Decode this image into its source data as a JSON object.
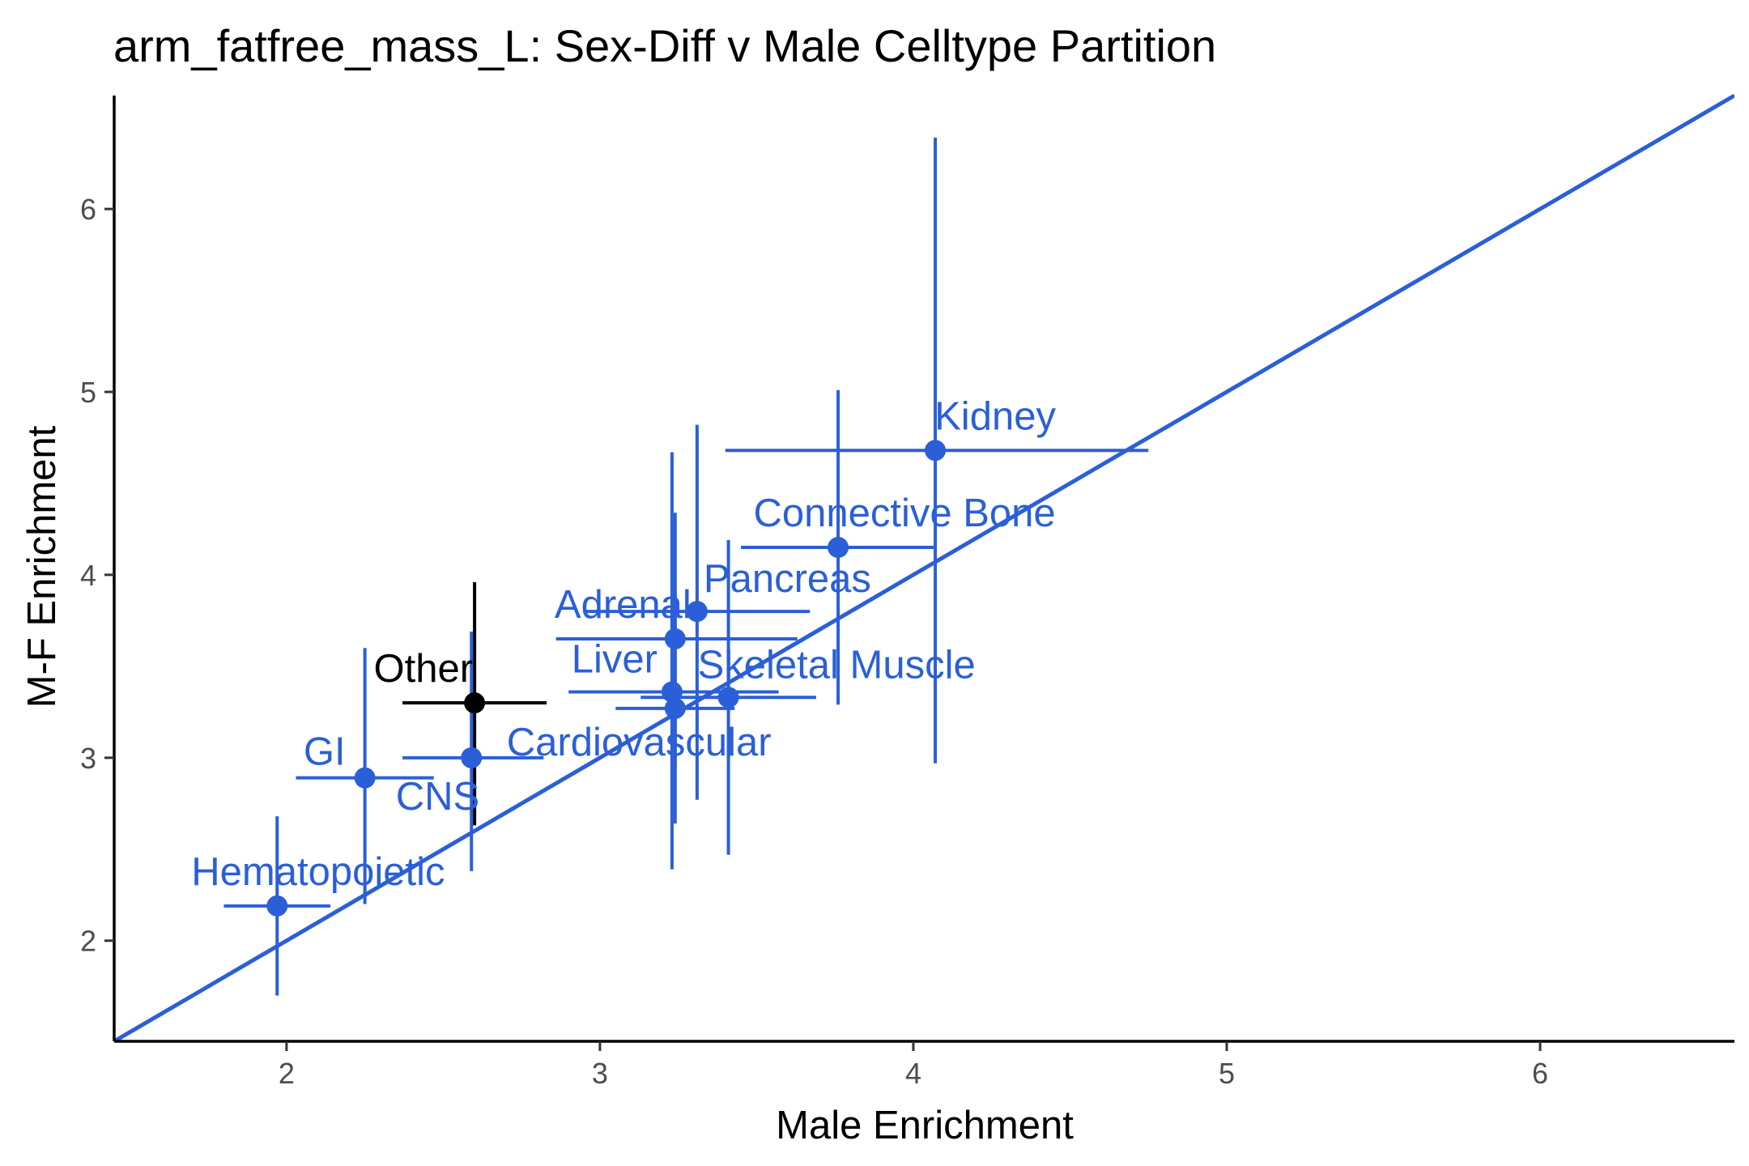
{
  "chart_data": {
    "type": "scatter",
    "title": "arm_fatfree_mass_L: Sex-Diff v Male Celltype Partition",
    "xlabel": "Male Enrichment",
    "ylabel": "M-F Enrichment",
    "xlim": [
      1.45,
      6.62
    ],
    "ylim": [
      1.45,
      6.62
    ],
    "x_ticks": [
      "2",
      "3",
      "4",
      "5",
      "6"
    ],
    "y_ticks": [
      "2",
      "3",
      "4",
      "5",
      "6"
    ],
    "grid": false,
    "legend": "none",
    "reference_line": {
      "type": "identity",
      "slope": 1,
      "intercept": 0,
      "color": "#2b5fd8"
    },
    "point_color": "#2b5fd8",
    "highlight_color": "#000000",
    "points": [
      {
        "label": "Kidney",
        "x": 4.07,
        "y": 4.68,
        "x_low": 3.4,
        "x_high": 4.75,
        "y_low": 2.97,
        "y_high": 6.39,
        "color": "#2b5fd8",
        "label_pos": "above"
      },
      {
        "label": "Connective Bone",
        "x": 3.76,
        "y": 4.15,
        "x_low": 3.45,
        "x_high": 4.07,
        "y_low": 3.29,
        "y_high": 5.01,
        "color": "#2b5fd8",
        "label_pos": "above"
      },
      {
        "label": "Adrenal",
        "x": 3.24,
        "y": 3.65,
        "x_low": 2.86,
        "x_high": 3.63,
        "y_low": 2.95,
        "y_high": 4.34,
        "color": "#2b5fd8",
        "label_pos": "above-left"
      },
      {
        "label": "Pancreas",
        "x": 3.31,
        "y": 3.8,
        "x_low": 2.95,
        "x_high": 3.67,
        "y_low": 2.77,
        "y_high": 4.82,
        "color": "#2b5fd8",
        "label_pos": "right"
      },
      {
        "label": "Liver",
        "x": 3.23,
        "y": 3.36,
        "x_low": 2.9,
        "x_high": 3.57,
        "y_low": 2.39,
        "y_high": 4.67,
        "color": "#2b5fd8",
        "label_pos": "above-left"
      },
      {
        "label": "Skeletal Muscle",
        "x": 3.41,
        "y": 3.33,
        "x_low": 3.13,
        "x_high": 3.69,
        "y_low": 2.47,
        "y_high": 4.19,
        "color": "#2b5fd8",
        "label_pos": "right"
      },
      {
        "label": "Cardiovascular",
        "x": 3.24,
        "y": 3.27,
        "x_low": 3.05,
        "x_high": 3.43,
        "y_low": 2.64,
        "y_high": 3.9,
        "color": "#2b5fd8",
        "label_pos": "below"
      },
      {
        "label": "Other",
        "x": 2.6,
        "y": 3.3,
        "x_low": 2.37,
        "x_high": 2.83,
        "y_low": 2.63,
        "y_high": 3.96,
        "color": "#000000",
        "label_pos": "above-left"
      },
      {
        "label": "CNS",
        "x": 2.59,
        "y": 3.0,
        "x_low": 2.37,
        "x_high": 2.82,
        "y_low": 2.38,
        "y_high": 3.69,
        "color": "#2b5fd8",
        "label_pos": "below-left"
      },
      {
        "label": "GI",
        "x": 2.25,
        "y": 2.89,
        "x_low": 2.03,
        "x_high": 2.47,
        "y_low": 2.2,
        "y_high": 3.6,
        "color": "#2b5fd8",
        "label_pos": "above-left"
      },
      {
        "label": "Hematopoietic",
        "x": 1.97,
        "y": 2.19,
        "x_low": 1.8,
        "x_high": 2.14,
        "y_low": 1.7,
        "y_high": 2.68,
        "color": "#2b5fd8",
        "label_pos": "above-right"
      }
    ]
  }
}
